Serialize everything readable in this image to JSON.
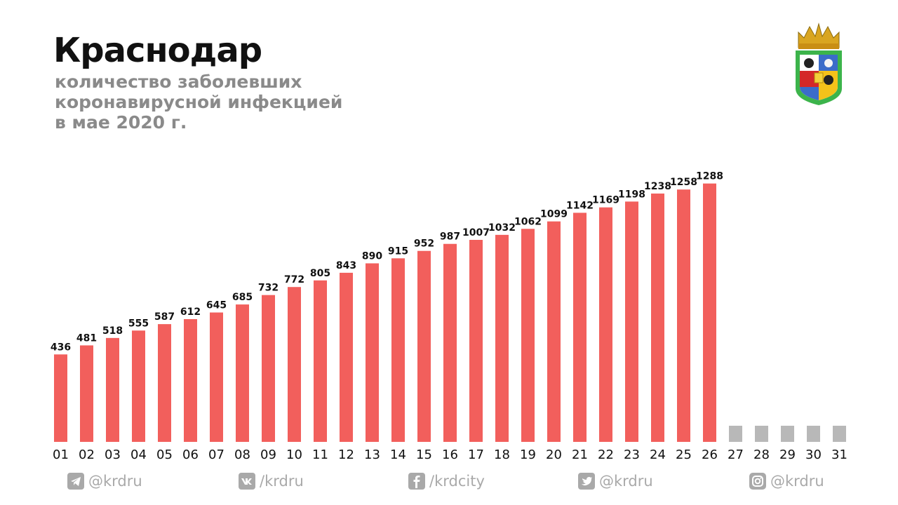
{
  "header": {
    "title": "Краснодар",
    "subtitle_lines": [
      "количество заболевших",
      "коронавирусной инфекцией",
      "в мае 2020 г."
    ]
  },
  "emblem": {
    "icon": "krasnodar-coat-of-arms-icon"
  },
  "colors": {
    "bar_actual": "#f25f5c",
    "bar_future": "#b8b8b8",
    "text": "#111111",
    "muted": "#8a8a8a"
  },
  "chart_data": {
    "type": "bar",
    "title": "Краснодар",
    "subtitle": "количество заболевших коронавирусной инфекцией в мае 2020 г.",
    "xlabel": "",
    "ylabel": "",
    "grid": false,
    "categories": [
      "01",
      "02",
      "03",
      "04",
      "05",
      "06",
      "07",
      "08",
      "09",
      "10",
      "11",
      "12",
      "13",
      "14",
      "15",
      "16",
      "17",
      "18",
      "19",
      "20",
      "21",
      "22",
      "23",
      "24",
      "25",
      "26",
      "27",
      "28",
      "29",
      "30",
      "31"
    ],
    "values": [
      436,
      481,
      518,
      555,
      587,
      612,
      645,
      685,
      732,
      772,
      805,
      843,
      890,
      915,
      952,
      987,
      1007,
      1032,
      1062,
      1099,
      1142,
      1169,
      1198,
      1238,
      1258,
      1288,
      null,
      null,
      null,
      null,
      null
    ]
  },
  "socials": [
    {
      "icon": "telegram-icon",
      "handle": "@krdru"
    },
    {
      "icon": "vk-icon",
      "handle": "/krdru"
    },
    {
      "icon": "facebook-icon",
      "handle": "/krdcity"
    },
    {
      "icon": "twitter-icon",
      "handle": "@krdru"
    },
    {
      "icon": "instagram-icon",
      "handle": "@krdru"
    }
  ]
}
